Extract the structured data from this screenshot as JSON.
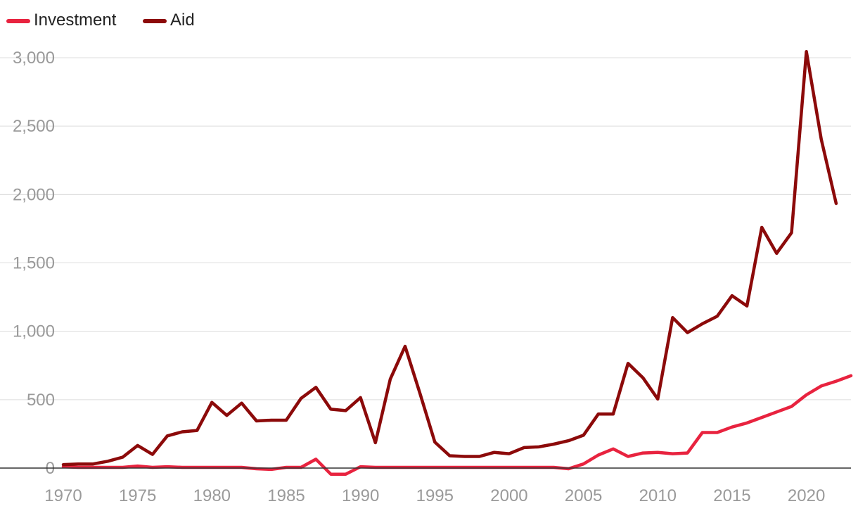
{
  "chart_data": {
    "type": "line",
    "title": "",
    "xlabel": "",
    "ylabel": "",
    "xlim": [
      1970,
      2023
    ],
    "ylim": [
      0,
      3000
    ],
    "yticks": [
      0,
      500,
      1000,
      1500,
      2000,
      2500,
      3000
    ],
    "ytick_labels": [
      "0",
      "500",
      "1,000",
      "1,500",
      "2,000",
      "2,500",
      "3,000"
    ],
    "xticks": [
      1970,
      1975,
      1980,
      1985,
      1990,
      1995,
      2000,
      2005,
      2010,
      2015,
      2020
    ],
    "xtick_labels": [
      "1970",
      "1975",
      "1980",
      "1985",
      "1990",
      "1995",
      "2000",
      "2005",
      "2010",
      "2015",
      "2020"
    ],
    "grid": true,
    "legend_position": "top-left",
    "series": [
      {
        "name": "Investment",
        "color": "#e8233f",
        "x": [
          1970,
          1971,
          1972,
          1973,
          1974,
          1975,
          1976,
          1977,
          1978,
          1979,
          1980,
          1981,
          1982,
          1983,
          1984,
          1985,
          1986,
          1987,
          1988,
          1989,
          1990,
          1991,
          1992,
          1993,
          1994,
          1995,
          1996,
          1997,
          1998,
          1999,
          2000,
          2001,
          2002,
          2003,
          2004,
          2005,
          2006,
          2007,
          2008,
          2009,
          2010,
          2011,
          2012,
          2013,
          2014,
          2015,
          2016,
          2017,
          2018,
          2019,
          2020,
          2021,
          2022,
          2023
        ],
        "values": [
          10,
          5,
          5,
          5,
          5,
          15,
          5,
          10,
          5,
          5,
          5,
          5,
          5,
          -5,
          -10,
          5,
          5,
          65,
          -45,
          -45,
          10,
          5,
          5,
          5,
          5,
          5,
          5,
          5,
          5,
          5,
          5,
          5,
          5,
          5,
          -5,
          30,
          95,
          140,
          85,
          110,
          115,
          105,
          110,
          260,
          260,
          300,
          330,
          370,
          410,
          450,
          535,
          600,
          635,
          675
        ]
      },
      {
        "name": "Aid",
        "color": "#8c0a0a",
        "x": [
          1970,
          1971,
          1972,
          1973,
          1974,
          1975,
          1976,
          1977,
          1978,
          1979,
          1980,
          1981,
          1982,
          1983,
          1984,
          1985,
          1986,
          1987,
          1988,
          1989,
          1990,
          1991,
          1992,
          1993,
          1994,
          1995,
          1996,
          1997,
          1998,
          1999,
          2000,
          2001,
          2002,
          2003,
          2004,
          2005,
          2006,
          2007,
          2008,
          2009,
          2010,
          2011,
          2012,
          2013,
          2014,
          2015,
          2016,
          2017,
          2018,
          2019,
          2020,
          2021,
          2022
        ],
        "values": [
          25,
          30,
          30,
          50,
          80,
          165,
          100,
          235,
          265,
          275,
          480,
          385,
          475,
          345,
          350,
          350,
          510,
          590,
          430,
          420,
          515,
          185,
          650,
          890,
          545,
          190,
          90,
          85,
          85,
          115,
          105,
          150,
          155,
          175,
          200,
          240,
          395,
          395,
          765,
          660,
          505,
          1100,
          990,
          1055,
          1110,
          1260,
          1185,
          1760,
          1570,
          1720,
          3045,
          2405,
          1935
        ]
      }
    ]
  }
}
